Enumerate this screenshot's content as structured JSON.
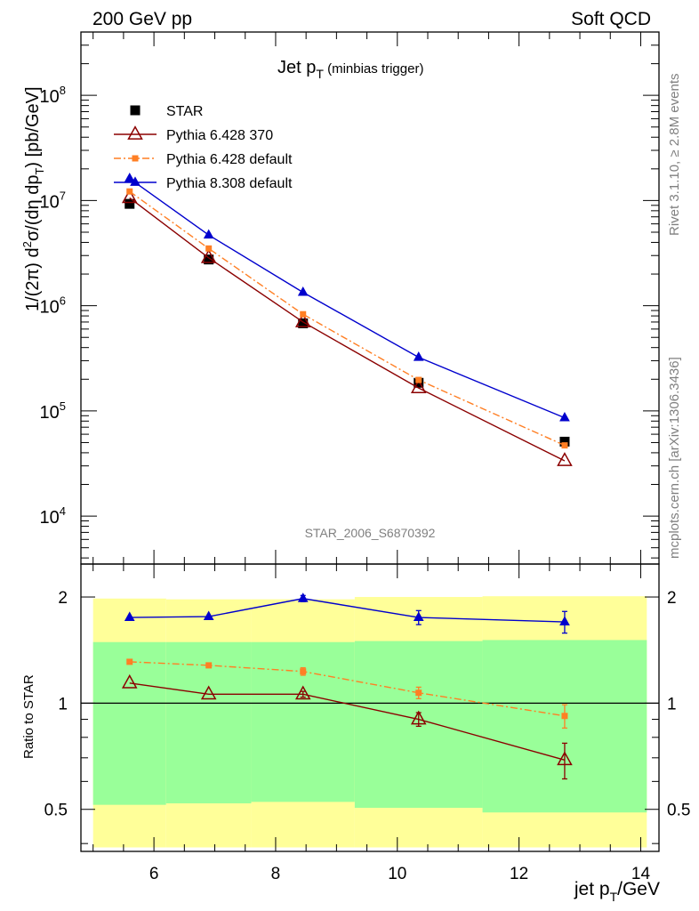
{
  "header": {
    "left": "200 GeV pp",
    "right": "Soft QCD"
  },
  "side": {
    "rivet_prefix": "Rivet 3.1.10, ",
    "rivet_geq": "≥",
    "rivet_suffix": " 2.8M events",
    "source": "mcplots.cern.ch [arXiv:1306.3436]"
  },
  "top_panel": {
    "title_main": "Jet p",
    "title_sub": "T",
    "title_note": " (minbias trigger)",
    "analysis_id": "STAR_2006_S6870392",
    "ylabel": "1/(2π) d²σ/(dη dp_T) [pb/GeV]",
    "y_ticks": [
      {
        "value": 10000,
        "base": "10",
        "exp": "4"
      },
      {
        "value": 100000,
        "base": "10",
        "exp": "5"
      },
      {
        "value": 1000000,
        "base": "10",
        "exp": "6"
      },
      {
        "value": 10000000,
        "base": "10",
        "exp": "7"
      },
      {
        "value": 100000000,
        "base": "10",
        "exp": "8"
      }
    ]
  },
  "bottom_panel": {
    "ylabel": "Ratio to STAR",
    "y_ticks": [
      "0.5",
      "1",
      "2"
    ],
    "y_tick_values": [
      0.5,
      1,
      2
    ]
  },
  "x_axis": {
    "label_main": "jet p",
    "label_sub": "T",
    "label_unit": "/GeV",
    "ticks": [
      "6",
      "8",
      "10",
      "12",
      "14"
    ],
    "tick_values": [
      6,
      8,
      10,
      12,
      14
    ]
  },
  "chart_data": [
    {
      "type": "line",
      "panel": "main",
      "yscale": "log",
      "xlim": [
        4.8,
        14.3
      ],
      "ylim": [
        3500,
        400000000
      ],
      "x": [
        5.6,
        6.9,
        8.45,
        10.35,
        12.75
      ],
      "series": [
        {
          "name": "STAR",
          "marker": "filled-square",
          "color": "#000000",
          "values": [
            9300000,
            2750000,
            680000,
            185000,
            51000
          ]
        },
        {
          "name": "Pythia 6.428 370",
          "marker": "open-triangle",
          "line": "solid",
          "color": "#8b0000",
          "values": [
            10600000,
            2850000,
            700000,
            165000,
            33500
          ]
        },
        {
          "name": "Pythia 6.428 default",
          "marker": "filled-square-small",
          "line": "dashdot",
          "color": "#ff7f24",
          "values": [
            12200000,
            3500000,
            830000,
            197000,
            47000
          ]
        },
        {
          "name": "Pythia 8.308 default",
          "marker": "filled-triangle",
          "line": "solid",
          "color": "#0000cd",
          "values": [
            16200000,
            4700000,
            1340000,
            323000,
            86000
          ]
        }
      ]
    },
    {
      "type": "line",
      "panel": "ratio",
      "yscale": "log",
      "xlim": [
        4.8,
        14.3
      ],
      "ylim": [
        0.38,
        2.48
      ],
      "x": [
        5.6,
        6.9,
        8.45,
        10.35,
        12.75
      ],
      "band": {
        "x_edges": [
          5.0,
          6.2,
          7.6,
          9.3,
          11.4,
          14.1
        ],
        "yellow_low": [
          0.39,
          0.39,
          0.39,
          0.39,
          0.39
        ],
        "yellow_high": [
          1.98,
          1.97,
          1.97,
          2.0,
          2.01
        ],
        "green_low": [
          0.515,
          0.52,
          0.525,
          0.505,
          0.49
        ],
        "green_high": [
          1.49,
          1.49,
          1.49,
          1.5,
          1.51
        ]
      },
      "series": [
        {
          "name": "Pythia 6.428 370",
          "color": "#8b0000",
          "values": [
            1.14,
            1.06,
            1.06,
            0.9,
            0.69
          ],
          "err_low": [
            0,
            0,
            0.02,
            0.04,
            0.08
          ],
          "err_high": [
            0,
            0,
            0.02,
            0.04,
            0.08
          ]
        },
        {
          "name": "Pythia 6.428 default",
          "color": "#ff7f24",
          "values": [
            1.31,
            1.28,
            1.23,
            1.07,
            0.92
          ],
          "err_low": [
            0,
            0,
            0.03,
            0.04,
            0.07
          ],
          "err_high": [
            0,
            0,
            0.03,
            0.04,
            0.07
          ]
        },
        {
          "name": "Pythia 8.308 default",
          "color": "#0000cd",
          "values": [
            1.75,
            1.76,
            1.98,
            1.75,
            1.7
          ],
          "err_low": [
            0,
            0,
            0.04,
            0.08,
            0.12
          ],
          "err_high": [
            0,
            0,
            0.04,
            0.08,
            0.12
          ]
        }
      ]
    }
  ]
}
